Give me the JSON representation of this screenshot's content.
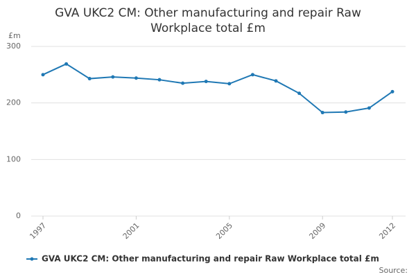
{
  "chart_data": {
    "type": "line",
    "title": "GVA UKC2 CM: Other manufacturing and repair Raw Workplace total £m",
    "y_label": "£m",
    "x": [
      1997,
      1998,
      1999,
      2000,
      2001,
      2002,
      2003,
      2004,
      2005,
      2006,
      2007,
      2008,
      2009,
      2010,
      2011,
      2012
    ],
    "xlim": [
      1997,
      2012
    ],
    "xticks": [
      1997,
      2001,
      2005,
      2009,
      2012
    ],
    "ylim": [
      0,
      300
    ],
    "yticks": [
      0,
      100,
      200,
      300
    ],
    "grid": true,
    "series": [
      {
        "name": "GVA UKC2 CM: Other manufacturing and repair Raw Workplace total £m",
        "color": "#1f78b4",
        "values": [
          250,
          269,
          243,
          246,
          244,
          241,
          235,
          238,
          234,
          250,
          239,
          217,
          183,
          184,
          191,
          220
        ]
      }
    ],
    "source": "Source:"
  }
}
